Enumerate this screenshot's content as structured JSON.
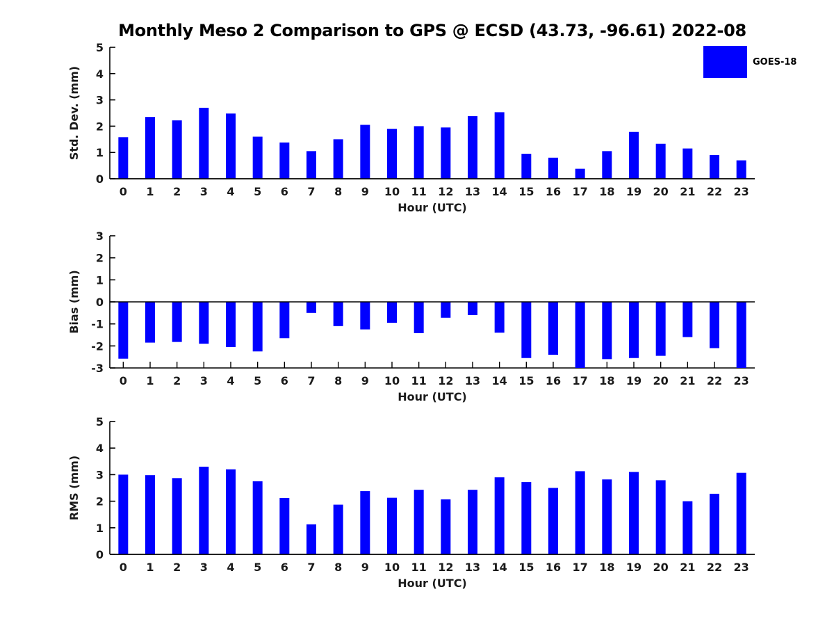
{
  "title": "Monthly Meso 2 Comparison to GPS @ ECSD (43.73, -96.61) 2022-08",
  "legend": {
    "label": "GOES-18",
    "swatch_color": "#0000ff",
    "position": "top-right"
  },
  "colors": {
    "bar": "#0000ff",
    "axis": "#000000",
    "tick_label": "#1a1a1a",
    "background": "#ffffff"
  },
  "chart_data": [
    {
      "type": "bar",
      "name": "std-dev",
      "series_name": "GOES-18",
      "title": "",
      "xlabel": "Hour (UTC)",
      "ylabel": "Std. Dev. (mm)",
      "categories": [
        "0",
        "1",
        "2",
        "3",
        "4",
        "5",
        "6",
        "7",
        "8",
        "9",
        "10",
        "11",
        "12",
        "13",
        "14",
        "15",
        "16",
        "17",
        "18",
        "19",
        "20",
        "21",
        "22",
        "23"
      ],
      "values": [
        1.58,
        2.35,
        2.22,
        2.7,
        2.48,
        1.6,
        1.38,
        1.05,
        1.5,
        2.05,
        1.9,
        2.0,
        1.95,
        2.38,
        2.53,
        0.95,
        0.8,
        0.38,
        1.05,
        1.78,
        1.33,
        1.15,
        0.9,
        0.7
      ],
      "ylim": [
        0,
        5
      ],
      "yticks": [
        0,
        1,
        2,
        3,
        4,
        5
      ],
      "grid": false
    },
    {
      "type": "bar",
      "name": "bias",
      "series_name": "GOES-18",
      "title": "",
      "xlabel": "Hour (UTC)",
      "ylabel": "Bias (mm)",
      "categories": [
        "0",
        "1",
        "2",
        "3",
        "4",
        "5",
        "6",
        "7",
        "8",
        "9",
        "10",
        "11",
        "12",
        "13",
        "14",
        "15",
        "16",
        "17",
        "18",
        "19",
        "20",
        "21",
        "22",
        "23"
      ],
      "values": [
        -2.58,
        -1.85,
        -1.82,
        -1.9,
        -2.05,
        -2.25,
        -1.65,
        -0.5,
        -1.1,
        -1.25,
        -0.95,
        -1.42,
        -0.72,
        -0.6,
        -1.4,
        -2.55,
        -2.4,
        -3.0,
        -2.6,
        -2.55,
        -2.45,
        -1.6,
        -2.1,
        -3.0
      ],
      "ylim": [
        -3,
        3
      ],
      "yticks": [
        -3,
        -2,
        -1,
        0,
        1,
        2,
        3
      ],
      "grid": false
    },
    {
      "type": "bar",
      "name": "rms",
      "series_name": "GOES-18",
      "title": "",
      "xlabel": "Hour (UTC)",
      "ylabel": "RMS (mm)",
      "categories": [
        "0",
        "1",
        "2",
        "3",
        "4",
        "5",
        "6",
        "7",
        "8",
        "9",
        "10",
        "11",
        "12",
        "13",
        "14",
        "15",
        "16",
        "17",
        "18",
        "19",
        "20",
        "21",
        "22",
        "23"
      ],
      "values": [
        3.0,
        2.98,
        2.87,
        3.3,
        3.2,
        2.75,
        2.12,
        1.13,
        1.87,
        2.38,
        2.13,
        2.43,
        2.07,
        2.43,
        2.9,
        2.72,
        2.5,
        3.13,
        2.82,
        3.1,
        2.79,
        2.0,
        2.28,
        3.07
      ],
      "ylim": [
        0,
        5
      ],
      "yticks": [
        0,
        1,
        2,
        3,
        4,
        5
      ],
      "grid": false
    }
  ]
}
